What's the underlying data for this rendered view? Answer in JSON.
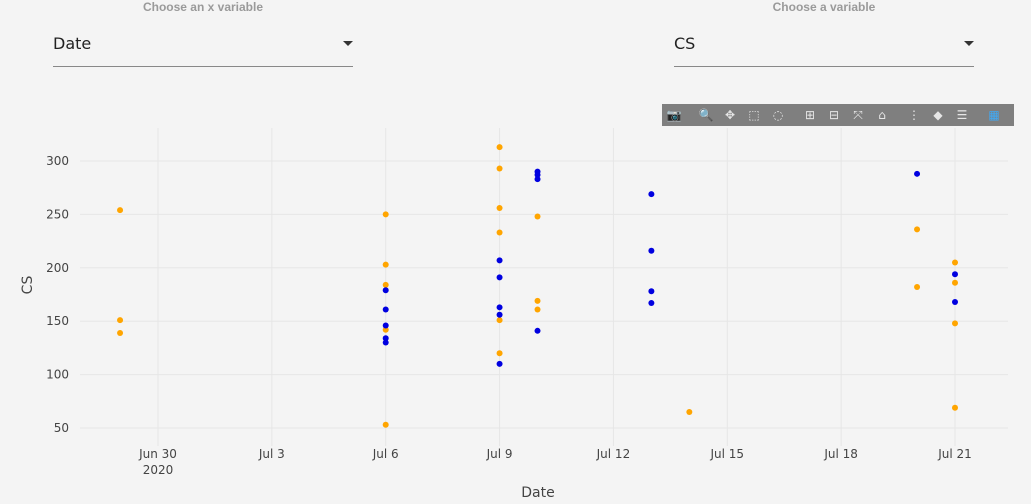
{
  "controls": {
    "x_label": "Choose an x variable",
    "x_value": "Date",
    "y_label": "Choose a variable",
    "y_value": "CS"
  },
  "modebar": [
    {
      "name": "camera-icon",
      "glyph": "📷"
    },
    {
      "name": "zoom-icon",
      "glyph": "🔍"
    },
    {
      "name": "pan-icon",
      "glyph": "✥"
    },
    {
      "name": "box-select-icon",
      "glyph": "⬚"
    },
    {
      "name": "lasso-icon",
      "glyph": "◌"
    },
    {
      "name": "zoom-in-icon",
      "glyph": "⊞"
    },
    {
      "name": "zoom-out-icon",
      "glyph": "⊟"
    },
    {
      "name": "autoscale-icon",
      "glyph": "⤧"
    },
    {
      "name": "home-icon",
      "glyph": "⌂"
    },
    {
      "name": "spike-lines-icon",
      "glyph": "⋮"
    },
    {
      "name": "hover-closest-icon",
      "glyph": "◆"
    },
    {
      "name": "hover-compare-icon",
      "glyph": "☰"
    },
    {
      "name": "plotly-logo-icon",
      "glyph": "▦"
    }
  ],
  "chart_data": {
    "type": "scatter",
    "xlabel": "Date",
    "ylabel": "CS",
    "xlim": [
      "2020-06-26",
      "2020-07-22"
    ],
    "ylim": [
      40,
      320
    ],
    "x_ticks": [
      {
        "date": "2020-06-30",
        "label": "Jun 30",
        "sublabel": "2020"
      },
      {
        "date": "2020-07-03",
        "label": "Jul 3"
      },
      {
        "date": "2020-07-06",
        "label": "Jul 6"
      },
      {
        "date": "2020-07-09",
        "label": "Jul 9"
      },
      {
        "date": "2020-07-12",
        "label": "Jul 12"
      },
      {
        "date": "2020-07-15",
        "label": "Jul 15"
      },
      {
        "date": "2020-07-18",
        "label": "Jul 18"
      },
      {
        "date": "2020-07-21",
        "label": "Jul 21"
      }
    ],
    "y_ticks": [
      50,
      100,
      150,
      200,
      250,
      300
    ],
    "grid": true,
    "colors": {
      "series_a": "#ffa500",
      "series_b": "#0000e0"
    },
    "series": [
      {
        "color": "#ffa500",
        "points": [
          {
            "x": "2020-06-29",
            "y": 254
          },
          {
            "x": "2020-06-29",
            "y": 151
          },
          {
            "x": "2020-06-29",
            "y": 139
          },
          {
            "x": "2020-07-06",
            "y": 250
          },
          {
            "x": "2020-07-06",
            "y": 203
          },
          {
            "x": "2020-07-06",
            "y": 184
          },
          {
            "x": "2020-07-06",
            "y": 142
          },
          {
            "x": "2020-07-06",
            "y": 53
          },
          {
            "x": "2020-07-09",
            "y": 313
          },
          {
            "x": "2020-07-09",
            "y": 293
          },
          {
            "x": "2020-07-09",
            "y": 256
          },
          {
            "x": "2020-07-09",
            "y": 233
          },
          {
            "x": "2020-07-09",
            "y": 151
          },
          {
            "x": "2020-07-09",
            "y": 120
          },
          {
            "x": "2020-07-10",
            "y": 248
          },
          {
            "x": "2020-07-10",
            "y": 169
          },
          {
            "x": "2020-07-10",
            "y": 161
          },
          {
            "x": "2020-07-14",
            "y": 65
          },
          {
            "x": "2020-07-20",
            "y": 236
          },
          {
            "x": "2020-07-20",
            "y": 182
          },
          {
            "x": "2020-07-21",
            "y": 205
          },
          {
            "x": "2020-07-21",
            "y": 186
          },
          {
            "x": "2020-07-21",
            "y": 148
          },
          {
            "x": "2020-07-21",
            "y": 69
          }
        ]
      },
      {
        "color": "#0000e0",
        "points": [
          {
            "x": "2020-07-06",
            "y": 179
          },
          {
            "x": "2020-07-06",
            "y": 161
          },
          {
            "x": "2020-07-06",
            "y": 146
          },
          {
            "x": "2020-07-06",
            "y": 134
          },
          {
            "x": "2020-07-06",
            "y": 130
          },
          {
            "x": "2020-07-09",
            "y": 207
          },
          {
            "x": "2020-07-09",
            "y": 191
          },
          {
            "x": "2020-07-09",
            "y": 163
          },
          {
            "x": "2020-07-09",
            "y": 156
          },
          {
            "x": "2020-07-09",
            "y": 110
          },
          {
            "x": "2020-07-10",
            "y": 290
          },
          {
            "x": "2020-07-10",
            "y": 287
          },
          {
            "x": "2020-07-10",
            "y": 283
          },
          {
            "x": "2020-07-10",
            "y": 141
          },
          {
            "x": "2020-07-13",
            "y": 269
          },
          {
            "x": "2020-07-13",
            "y": 216
          },
          {
            "x": "2020-07-13",
            "y": 178
          },
          {
            "x": "2020-07-13",
            "y": 167
          },
          {
            "x": "2020-07-20",
            "y": 288
          },
          {
            "x": "2020-07-21",
            "y": 194
          },
          {
            "x": "2020-07-21",
            "y": 168
          }
        ]
      }
    ]
  }
}
